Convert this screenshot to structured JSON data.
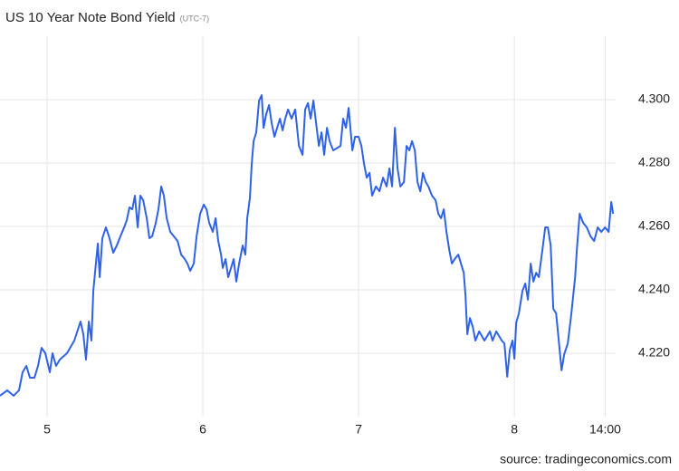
{
  "chart_data": {
    "type": "line",
    "title": "US 10 Year Note Bond Yield",
    "subtitle": "(UTC-7)",
    "source": "source: tradingeconomics.com",
    "grid": true,
    "xlim": [
      4.698,
      8.65
    ],
    "ylim": [
      4.2,
      4.32
    ],
    "xticks": [
      5,
      6,
      7,
      8,
      {
        "value": 8.583,
        "label": "14:00"
      }
    ],
    "yticks": [
      {
        "value": 4.22,
        "label": "4.220"
      },
      {
        "value": 4.24,
        "label": "4.240"
      },
      {
        "value": 4.26,
        "label": "4.260"
      },
      {
        "value": 4.28,
        "label": "4.280"
      },
      {
        "value": 4.3,
        "label": "4.300"
      }
    ],
    "x": [
      4.698,
      4.745,
      4.785,
      4.82,
      4.843,
      4.867,
      4.89,
      4.919,
      4.942,
      4.965,
      4.989,
      5.018,
      5.035,
      5.058,
      5.082,
      5.128,
      5.175,
      5.215,
      5.233,
      5.25,
      5.268,
      5.285,
      5.297,
      5.308,
      5.326,
      5.338,
      5.355,
      5.378,
      5.401,
      5.425,
      5.448,
      5.471,
      5.495,
      5.512,
      5.529,
      5.547,
      5.564,
      5.582,
      5.599,
      5.617,
      5.64,
      5.657,
      5.675,
      5.698,
      5.715,
      5.733,
      5.75,
      5.768,
      5.791,
      5.814,
      5.838,
      5.861,
      5.884,
      5.901,
      5.919,
      5.942,
      5.96,
      5.983,
      6.006,
      6.024,
      6.041,
      6.064,
      6.082,
      6.099,
      6.117,
      6.128,
      6.146,
      6.163,
      6.181,
      6.198,
      6.215,
      6.233,
      6.256,
      6.273,
      6.285,
      6.302,
      6.314,
      6.326,
      6.343,
      6.361,
      6.378,
      6.39,
      6.407,
      6.425,
      6.442,
      6.46,
      6.477,
      6.495,
      6.512,
      6.529,
      6.547,
      6.57,
      6.593,
      6.617,
      6.64,
      6.657,
      6.675,
      6.692,
      6.71,
      6.727,
      6.745,
      6.762,
      6.779,
      6.797,
      6.814,
      6.837,
      6.884,
      6.901,
      6.919,
      6.936,
      6.96,
      6.977,
      7.0,
      7.018,
      7.035,
      7.052,
      7.07,
      7.087,
      7.111,
      7.134,
      7.157,
      7.18,
      7.198,
      7.215,
      7.233,
      7.25,
      7.268,
      7.291,
      7.308,
      7.326,
      7.343,
      7.361,
      7.378,
      7.396,
      7.413,
      7.431,
      7.448,
      7.471,
      7.494,
      7.512,
      7.529,
      7.547,
      7.564,
      7.582,
      7.599,
      7.617,
      7.64,
      7.657,
      7.675,
      7.686,
      7.698,
      7.715,
      7.733,
      7.75,
      7.774,
      7.808,
      7.843,
      7.86,
      7.884,
      7.919,
      7.936,
      7.954,
      7.971,
      7.988,
      8.0,
      8.012,
      8.029,
      8.052,
      8.07,
      8.087,
      8.105,
      8.122,
      8.14,
      8.157,
      8.18,
      8.198,
      8.215,
      8.233,
      8.25,
      8.268,
      8.285,
      8.303,
      8.32,
      8.343,
      8.366,
      8.39,
      8.401,
      8.419,
      8.442,
      8.465,
      8.489,
      8.512,
      8.535,
      8.558,
      8.582,
      8.605,
      8.622,
      8.634
    ],
    "series": [
      {
        "color": "#2f62e6",
        "values": [
          4.2066,
          4.2083,
          4.2066,
          4.2083,
          4.214,
          4.216,
          4.2123,
          4.2123,
          4.216,
          4.2217,
          4.22,
          4.214,
          4.22,
          4.216,
          4.218,
          4.22,
          4.224,
          4.23,
          4.226,
          4.218,
          4.23,
          4.224,
          4.2397,
          4.2454,
          4.2546,
          4.244,
          4.2563,
          4.2597,
          4.2563,
          4.2517,
          4.254,
          4.2569,
          4.2597,
          4.262,
          4.266,
          4.2654,
          4.2697,
          4.2597,
          4.2697,
          4.2683,
          4.2626,
          4.2563,
          4.2569,
          4.2611,
          4.2654,
          4.2726,
          4.2697,
          4.2626,
          4.2583,
          4.2569,
          4.2554,
          4.2511,
          4.2497,
          4.2483,
          4.246,
          4.2483,
          4.2569,
          4.264,
          4.2669,
          4.2654,
          4.2611,
          4.2583,
          4.2626,
          4.2554,
          4.2511,
          4.2469,
          4.2497,
          4.244,
          4.2469,
          4.2497,
          4.2426,
          4.2483,
          4.254,
          4.2511,
          4.2626,
          4.2689,
          4.2797,
          4.2869,
          4.2897,
          4.2997,
          4.3014,
          4.2911,
          4.2954,
          4.2983,
          4.2926,
          4.2883,
          4.2911,
          4.294,
          4.2903,
          4.294,
          4.2969,
          4.294,
          4.2969,
          4.2854,
          4.2826,
          4.2969,
          4.2989,
          4.294,
          4.2997,
          4.2926,
          4.2854,
          4.2897,
          4.2826,
          4.2911,
          4.2869,
          4.284,
          4.2854,
          4.294,
          4.2911,
          4.2974,
          4.284,
          4.2883,
          4.2883,
          4.2854,
          4.2797,
          4.2754,
          4.2769,
          4.2697,
          4.2726,
          4.2711,
          4.2754,
          4.2726,
          4.2783,
          4.2726,
          4.2911,
          4.2783,
          4.2726,
          4.274,
          4.2854,
          4.284,
          4.2869,
          4.284,
          4.274,
          4.2711,
          4.2769,
          4.274,
          4.2726,
          4.2697,
          4.2683,
          4.264,
          4.2626,
          4.2654,
          4.2583,
          4.2526,
          4.2483,
          4.2497,
          4.2511,
          4.2483,
          4.2454,
          4.2383,
          4.226,
          4.2311,
          4.2283,
          4.224,
          4.2269,
          4.224,
          4.2269,
          4.224,
          4.2269,
          4.224,
          4.2231,
          4.2126,
          4.2211,
          4.224,
          4.2183,
          4.2297,
          4.2326,
          4.2397,
          4.242,
          4.2369,
          4.2483,
          4.2426,
          4.2454,
          4.244,
          4.2526,
          4.2597,
          4.2597,
          4.254,
          4.234,
          4.2326,
          4.224,
          4.2146,
          4.2197,
          4.2231,
          4.2326,
          4.244,
          4.2526,
          4.264,
          4.2611,
          4.2597,
          4.2569,
          4.2554,
          4.2597,
          4.2583,
          4.2597,
          4.2583,
          4.2677,
          4.264
        ]
      }
    ]
  }
}
